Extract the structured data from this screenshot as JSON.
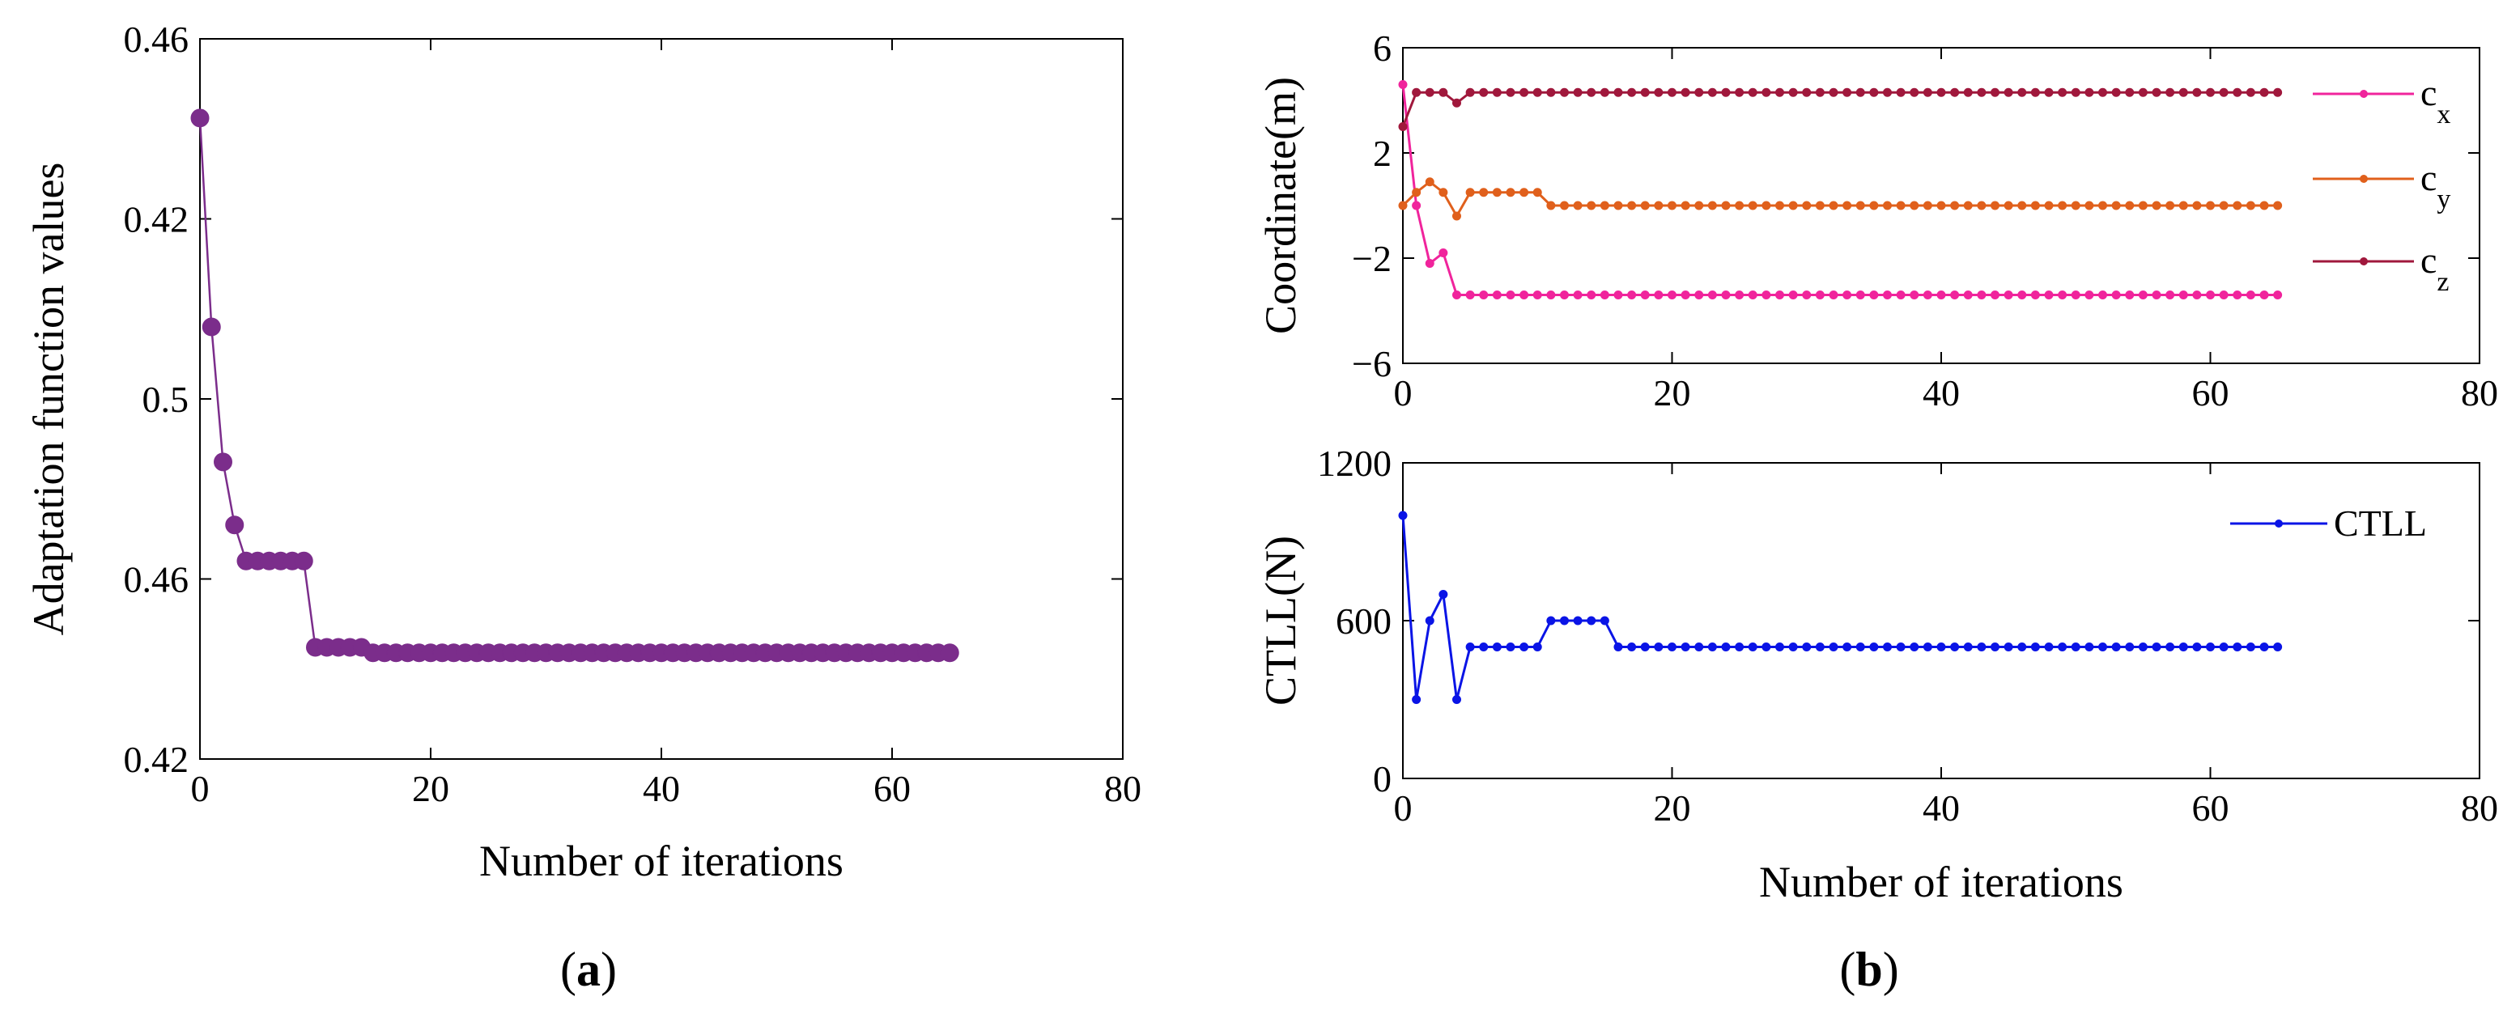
{
  "chart_data": [
    {
      "panel": "a",
      "type": "line",
      "xlabel": "Number of iterations",
      "ylabel": "Adaptation function values",
      "xlim": [
        0,
        80
      ],
      "ylim": [
        0,
        4
      ],
      "xticks": [
        0,
        20,
        40,
        60,
        80
      ],
      "xtick_labels": [
        "0",
        "20",
        "40",
        "60",
        "80"
      ],
      "yticks": [
        0,
        1,
        2,
        3,
        4
      ],
      "ytick_labels": [
        "0.42",
        "0.46",
        "0.5",
        "0.42",
        "0.46"
      ],
      "series": [
        {
          "name": "Adaptation function values",
          "color": "#7b2d8b",
          "marker": "filled-circle",
          "x": [
            0,
            1,
            2,
            3,
            4,
            5,
            6,
            7,
            8,
            9,
            10,
            11,
            12,
            13,
            14,
            15,
            16,
            17,
            18,
            19,
            20,
            21,
            22,
            23,
            24,
            25,
            26,
            27,
            28,
            29,
            30,
            31,
            32,
            33,
            34,
            35,
            36,
            37,
            38,
            39,
            40,
            41,
            42,
            43,
            44,
            45,
            46,
            47,
            48,
            49,
            50,
            51,
            52,
            53,
            54,
            55,
            56,
            57,
            58,
            59,
            60,
            61,
            62,
            63,
            64,
            65
          ],
          "values": [
            3.56,
            2.4,
            1.65,
            1.3,
            1.1,
            1.1,
            1.1,
            1.1,
            1.1,
            1.1,
            0.62,
            0.62,
            0.62,
            0.62,
            0.62,
            0.59,
            0.59,
            0.59,
            0.59,
            0.59,
            0.59,
            0.59,
            0.59,
            0.59,
            0.59,
            0.59,
            0.59,
            0.59,
            0.59,
            0.59,
            0.59,
            0.59,
            0.59,
            0.59,
            0.59,
            0.59,
            0.59,
            0.59,
            0.59,
            0.59,
            0.59,
            0.59,
            0.59,
            0.59,
            0.59,
            0.59,
            0.59,
            0.59,
            0.59,
            0.59,
            0.59,
            0.59,
            0.59,
            0.59,
            0.59,
            0.59,
            0.59,
            0.59,
            0.59,
            0.59,
            0.59,
            0.59,
            0.59,
            0.59,
            0.59,
            0.59
          ]
        }
      ]
    },
    {
      "panel": "b-top",
      "type": "line",
      "xlabel": "",
      "ylabel": "Coordinate(m)",
      "xlim": [
        0,
        80
      ],
      "ylim": [
        -6,
        6
      ],
      "xticks": [
        0,
        20,
        40,
        60,
        80
      ],
      "xtick_labels": [
        "0",
        "20",
        "40",
        "60",
        "80"
      ],
      "yticks": [
        -6,
        -2,
        2,
        6
      ],
      "ytick_labels": [
        "−6",
        "−2",
        "2",
        "6"
      ],
      "legend_position": "right",
      "series": [
        {
          "name": "c",
          "subscript": "x",
          "color": "#f0249c",
          "x": [
            0,
            1,
            2,
            3,
            4,
            5,
            6,
            7,
            8,
            9,
            10,
            11,
            12,
            13,
            14,
            15,
            16,
            17,
            18,
            19,
            20,
            21,
            22,
            23,
            24,
            25,
            26,
            27,
            28,
            29,
            30,
            31,
            32,
            33,
            34,
            35,
            36,
            37,
            38,
            39,
            40,
            41,
            42,
            43,
            44,
            45,
            46,
            47,
            48,
            49,
            50,
            51,
            52,
            53,
            54,
            55,
            56,
            57,
            58,
            59,
            60,
            61,
            62,
            63,
            64,
            65
          ],
          "values": [
            4.6,
            0.0,
            -2.2,
            -1.8,
            -3.4,
            -3.4,
            -3.4,
            -3.4,
            -3.4,
            -3.4,
            -3.4,
            -3.4,
            -3.4,
            -3.4,
            -3.4,
            -3.4,
            -3.4,
            -3.4,
            -3.4,
            -3.4,
            -3.4,
            -3.4,
            -3.4,
            -3.4,
            -3.4,
            -3.4,
            -3.4,
            -3.4,
            -3.4,
            -3.4,
            -3.4,
            -3.4,
            -3.4,
            -3.4,
            -3.4,
            -3.4,
            -3.4,
            -3.4,
            -3.4,
            -3.4,
            -3.4,
            -3.4,
            -3.4,
            -3.4,
            -3.4,
            -3.4,
            -3.4,
            -3.4,
            -3.4,
            -3.4,
            -3.4,
            -3.4,
            -3.4,
            -3.4,
            -3.4,
            -3.4,
            -3.4,
            -3.4,
            -3.4,
            -3.4,
            -3.4,
            -3.4,
            -3.4,
            -3.4,
            -3.4,
            -3.4
          ]
        },
        {
          "name": "c",
          "subscript": "y",
          "color": "#e0601c",
          "x": [
            0,
            1,
            2,
            3,
            4,
            5,
            6,
            7,
            8,
            9,
            10,
            11,
            12,
            13,
            14,
            15,
            16,
            17,
            18,
            19,
            20,
            21,
            22,
            23,
            24,
            25,
            26,
            27,
            28,
            29,
            30,
            31,
            32,
            33,
            34,
            35,
            36,
            37,
            38,
            39,
            40,
            41,
            42,
            43,
            44,
            45,
            46,
            47,
            48,
            49,
            50,
            51,
            52,
            53,
            54,
            55,
            56,
            57,
            58,
            59,
            60,
            61,
            62,
            63,
            64,
            65
          ],
          "values": [
            0.0,
            0.5,
            0.9,
            0.5,
            -0.4,
            0.5,
            0.5,
            0.5,
            0.5,
            0.5,
            0.5,
            0.0,
            0.0,
            0.0,
            0.0,
            0.0,
            0.0,
            0.0,
            0.0,
            0.0,
            0.0,
            0.0,
            0.0,
            0.0,
            0.0,
            0.0,
            0.0,
            0.0,
            0.0,
            0.0,
            0.0,
            0.0,
            0.0,
            0.0,
            0.0,
            0.0,
            0.0,
            0.0,
            0.0,
            0.0,
            0.0,
            0.0,
            0.0,
            0.0,
            0.0,
            0.0,
            0.0,
            0.0,
            0.0,
            0.0,
            0.0,
            0.0,
            0.0,
            0.0,
            0.0,
            0.0,
            0.0,
            0.0,
            0.0,
            0.0,
            0.0,
            0.0,
            0.0,
            0.0,
            0.0,
            0.0
          ]
        },
        {
          "name": "c",
          "subscript": "z",
          "color": "#a0183c",
          "x": [
            0,
            1,
            2,
            3,
            4,
            5,
            6,
            7,
            8,
            9,
            10,
            11,
            12,
            13,
            14,
            15,
            16,
            17,
            18,
            19,
            20,
            21,
            22,
            23,
            24,
            25,
            26,
            27,
            28,
            29,
            30,
            31,
            32,
            33,
            34,
            35,
            36,
            37,
            38,
            39,
            40,
            41,
            42,
            43,
            44,
            45,
            46,
            47,
            48,
            49,
            50,
            51,
            52,
            53,
            54,
            55,
            56,
            57,
            58,
            59,
            60,
            61,
            62,
            63,
            64,
            65
          ],
          "values": [
            3.0,
            4.3,
            4.3,
            4.3,
            3.9,
            4.3,
            4.3,
            4.3,
            4.3,
            4.3,
            4.3,
            4.3,
            4.3,
            4.3,
            4.3,
            4.3,
            4.3,
            4.3,
            4.3,
            4.3,
            4.3,
            4.3,
            4.3,
            4.3,
            4.3,
            4.3,
            4.3,
            4.3,
            4.3,
            4.3,
            4.3,
            4.3,
            4.3,
            4.3,
            4.3,
            4.3,
            4.3,
            4.3,
            4.3,
            4.3,
            4.3,
            4.3,
            4.3,
            4.3,
            4.3,
            4.3,
            4.3,
            4.3,
            4.3,
            4.3,
            4.3,
            4.3,
            4.3,
            4.3,
            4.3,
            4.3,
            4.3,
            4.3,
            4.3,
            4.3,
            4.3,
            4.3,
            4.3,
            4.3,
            4.3,
            4.3
          ]
        }
      ]
    },
    {
      "panel": "b-bottom",
      "type": "line",
      "xlabel": "Number of iterations",
      "ylabel": "CTLL(N)",
      "xlim": [
        0,
        80
      ],
      "ylim": [
        0,
        1200
      ],
      "xticks": [
        0,
        20,
        40,
        60,
        80
      ],
      "xtick_labels": [
        "0",
        "20",
        "40",
        "60",
        "80"
      ],
      "yticks": [
        0,
        600,
        1200
      ],
      "ytick_labels": [
        "0",
        "600",
        "1200"
      ],
      "legend_position": "top-right",
      "series": [
        {
          "name": "CTLL",
          "color": "#0a14e6",
          "x": [
            0,
            1,
            2,
            3,
            4,
            5,
            6,
            7,
            8,
            9,
            10,
            11,
            12,
            13,
            14,
            15,
            16,
            17,
            18,
            19,
            20,
            21,
            22,
            23,
            24,
            25,
            26,
            27,
            28,
            29,
            30,
            31,
            32,
            33,
            34,
            35,
            36,
            37,
            38,
            39,
            40,
            41,
            42,
            43,
            44,
            45,
            46,
            47,
            48,
            49,
            50,
            51,
            52,
            53,
            54,
            55,
            56,
            57,
            58,
            59,
            60,
            61,
            62,
            63,
            64,
            65
          ],
          "values": [
            1000,
            300,
            600,
            700,
            300,
            500,
            500,
            500,
            500,
            500,
            500,
            600,
            600,
            600,
            600,
            600,
            500,
            500,
            500,
            500,
            500,
            500,
            500,
            500,
            500,
            500,
            500,
            500,
            500,
            500,
            500,
            500,
            500,
            500,
            500,
            500,
            500,
            500,
            500,
            500,
            500,
            500,
            500,
            500,
            500,
            500,
            500,
            500,
            500,
            500,
            500,
            500,
            500,
            500,
            500,
            500,
            500,
            500,
            500,
            500,
            500,
            500,
            500,
            500,
            500,
            500
          ]
        }
      ]
    }
  ],
  "panel_labels": {
    "a": {
      "open": "(",
      "letter": "a",
      "close": ")"
    },
    "b": {
      "open": "(",
      "letter": "b",
      "close": ")"
    }
  }
}
